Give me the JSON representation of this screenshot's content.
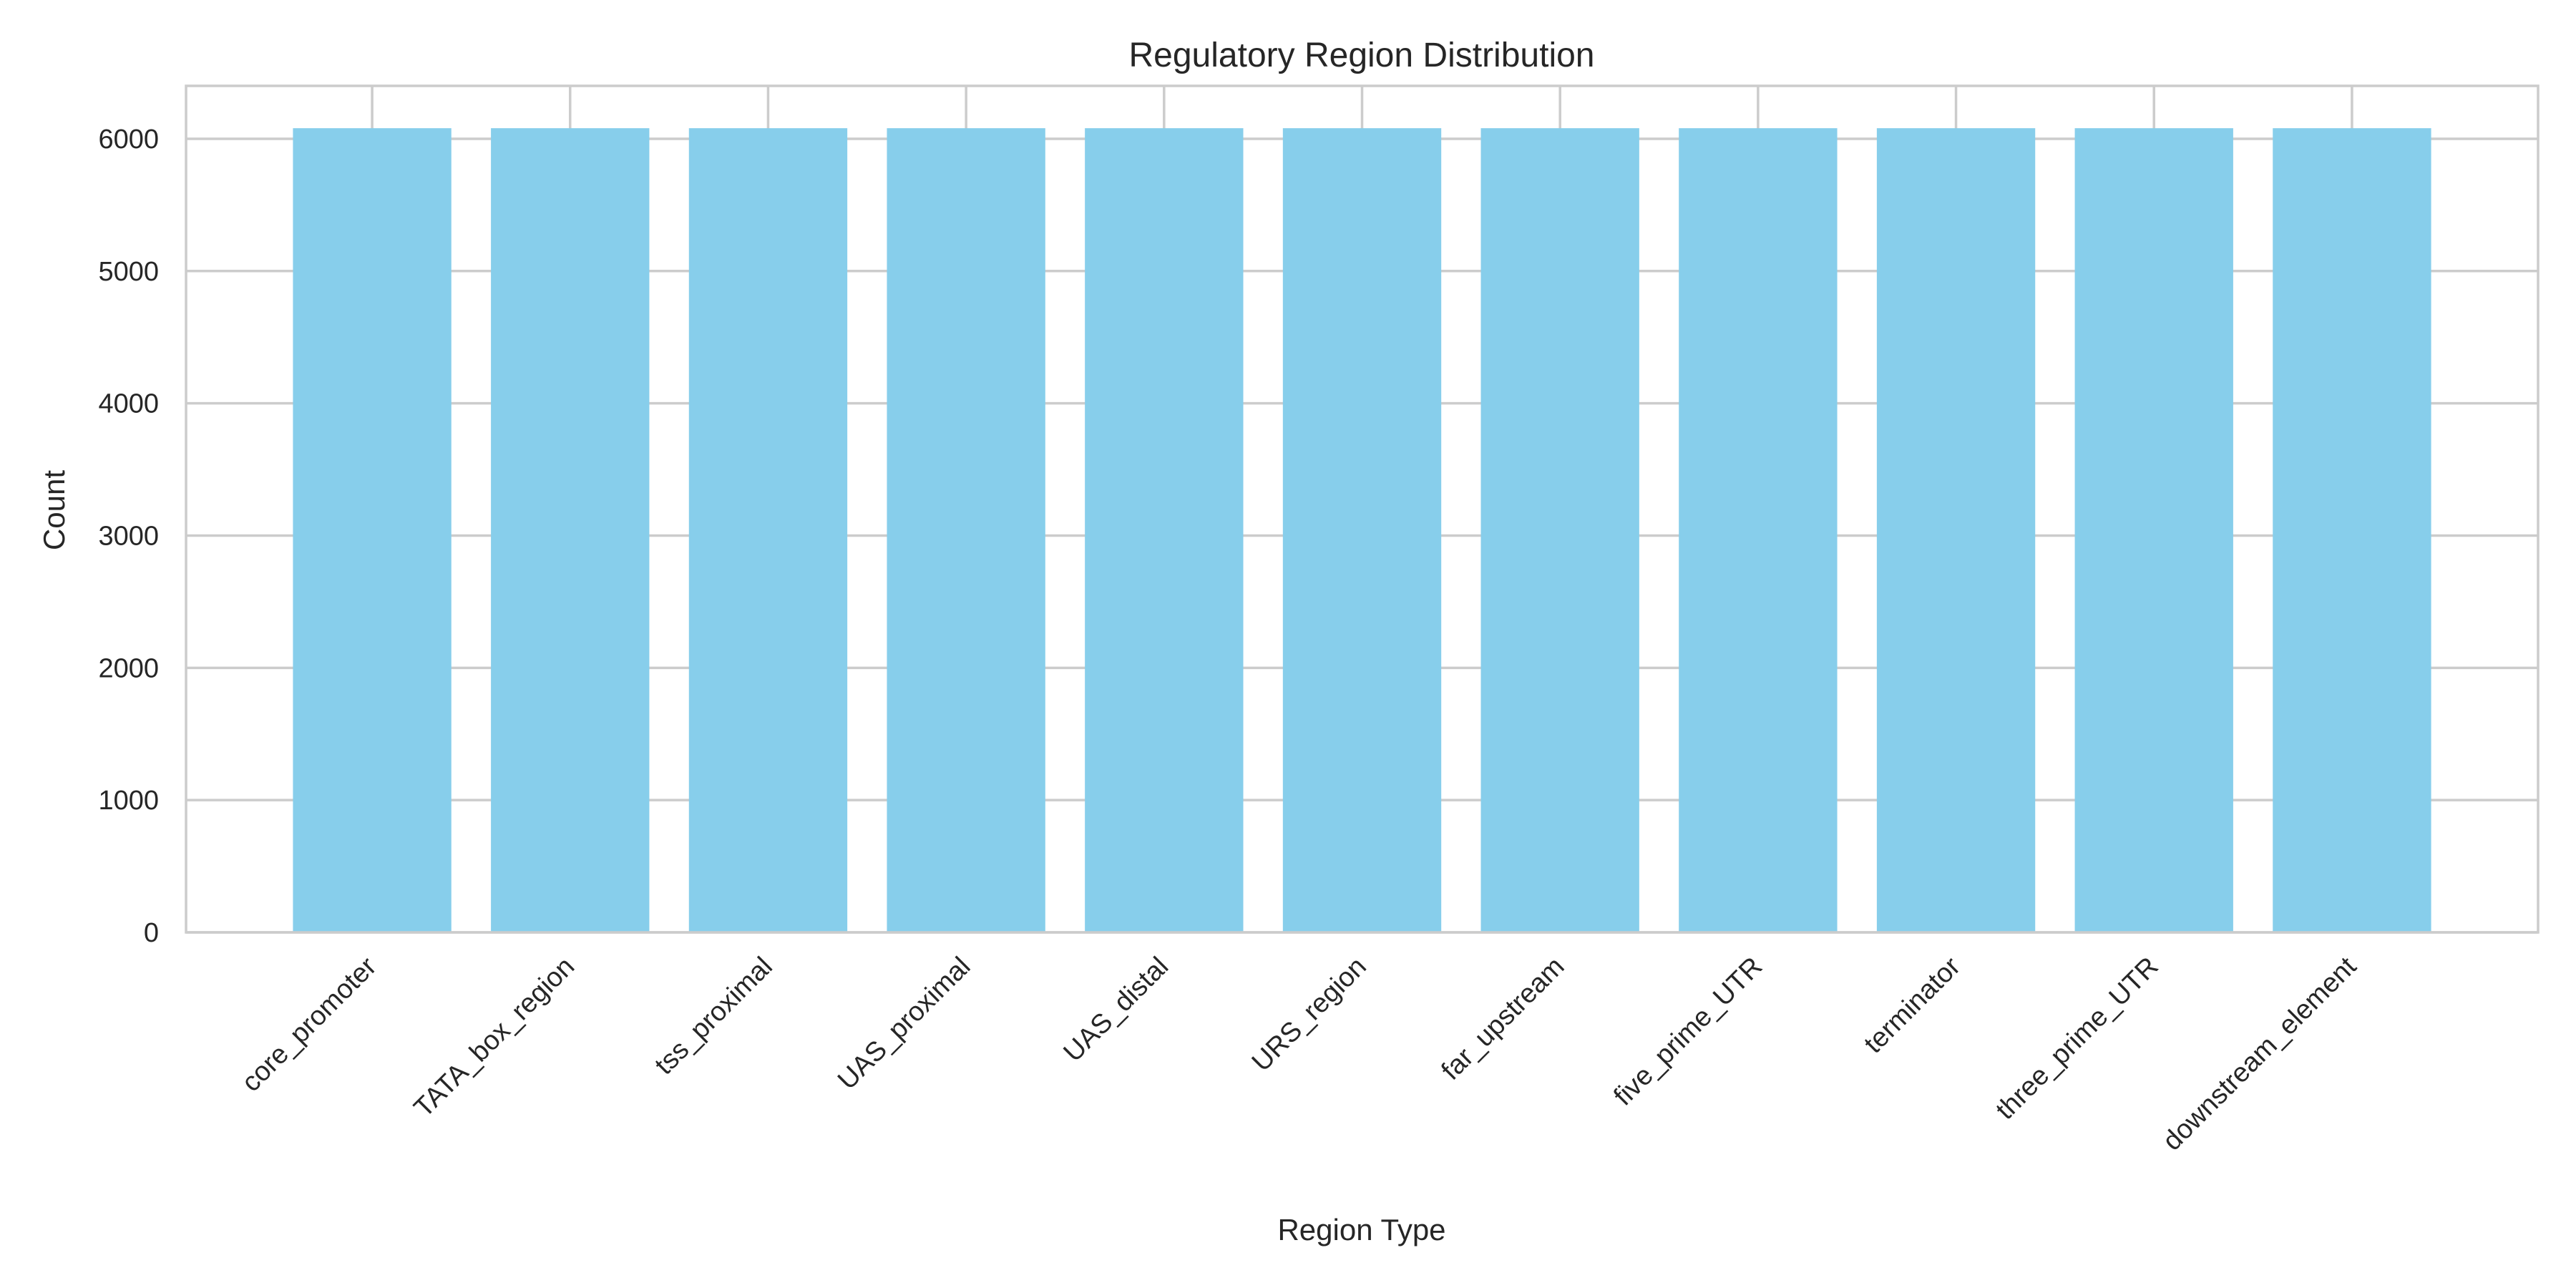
{
  "chart_data": {
    "type": "bar",
    "title": "Regulatory Region Distribution",
    "xlabel": "Region Type",
    "ylabel": "Count",
    "categories": [
      "core_promoter",
      "TATA_box_region",
      "tss_proximal",
      "UAS_proximal",
      "UAS_distal",
      "URS_region",
      "far_upstream",
      "five_prime_UTR",
      "terminator",
      "three_prime_UTR",
      "downstream_element"
    ],
    "values": [
      6080,
      6080,
      6080,
      6080,
      6080,
      6080,
      6080,
      6080,
      6080,
      6080,
      6080
    ],
    "ylim": [
      0,
      6400
    ],
    "yticks": [
      0,
      1000,
      2000,
      3000,
      4000,
      5000,
      6000
    ],
    "grid": true,
    "bar_color": "#87ceeb",
    "grid_color": "#cccccc",
    "text_color": "#262626"
  }
}
